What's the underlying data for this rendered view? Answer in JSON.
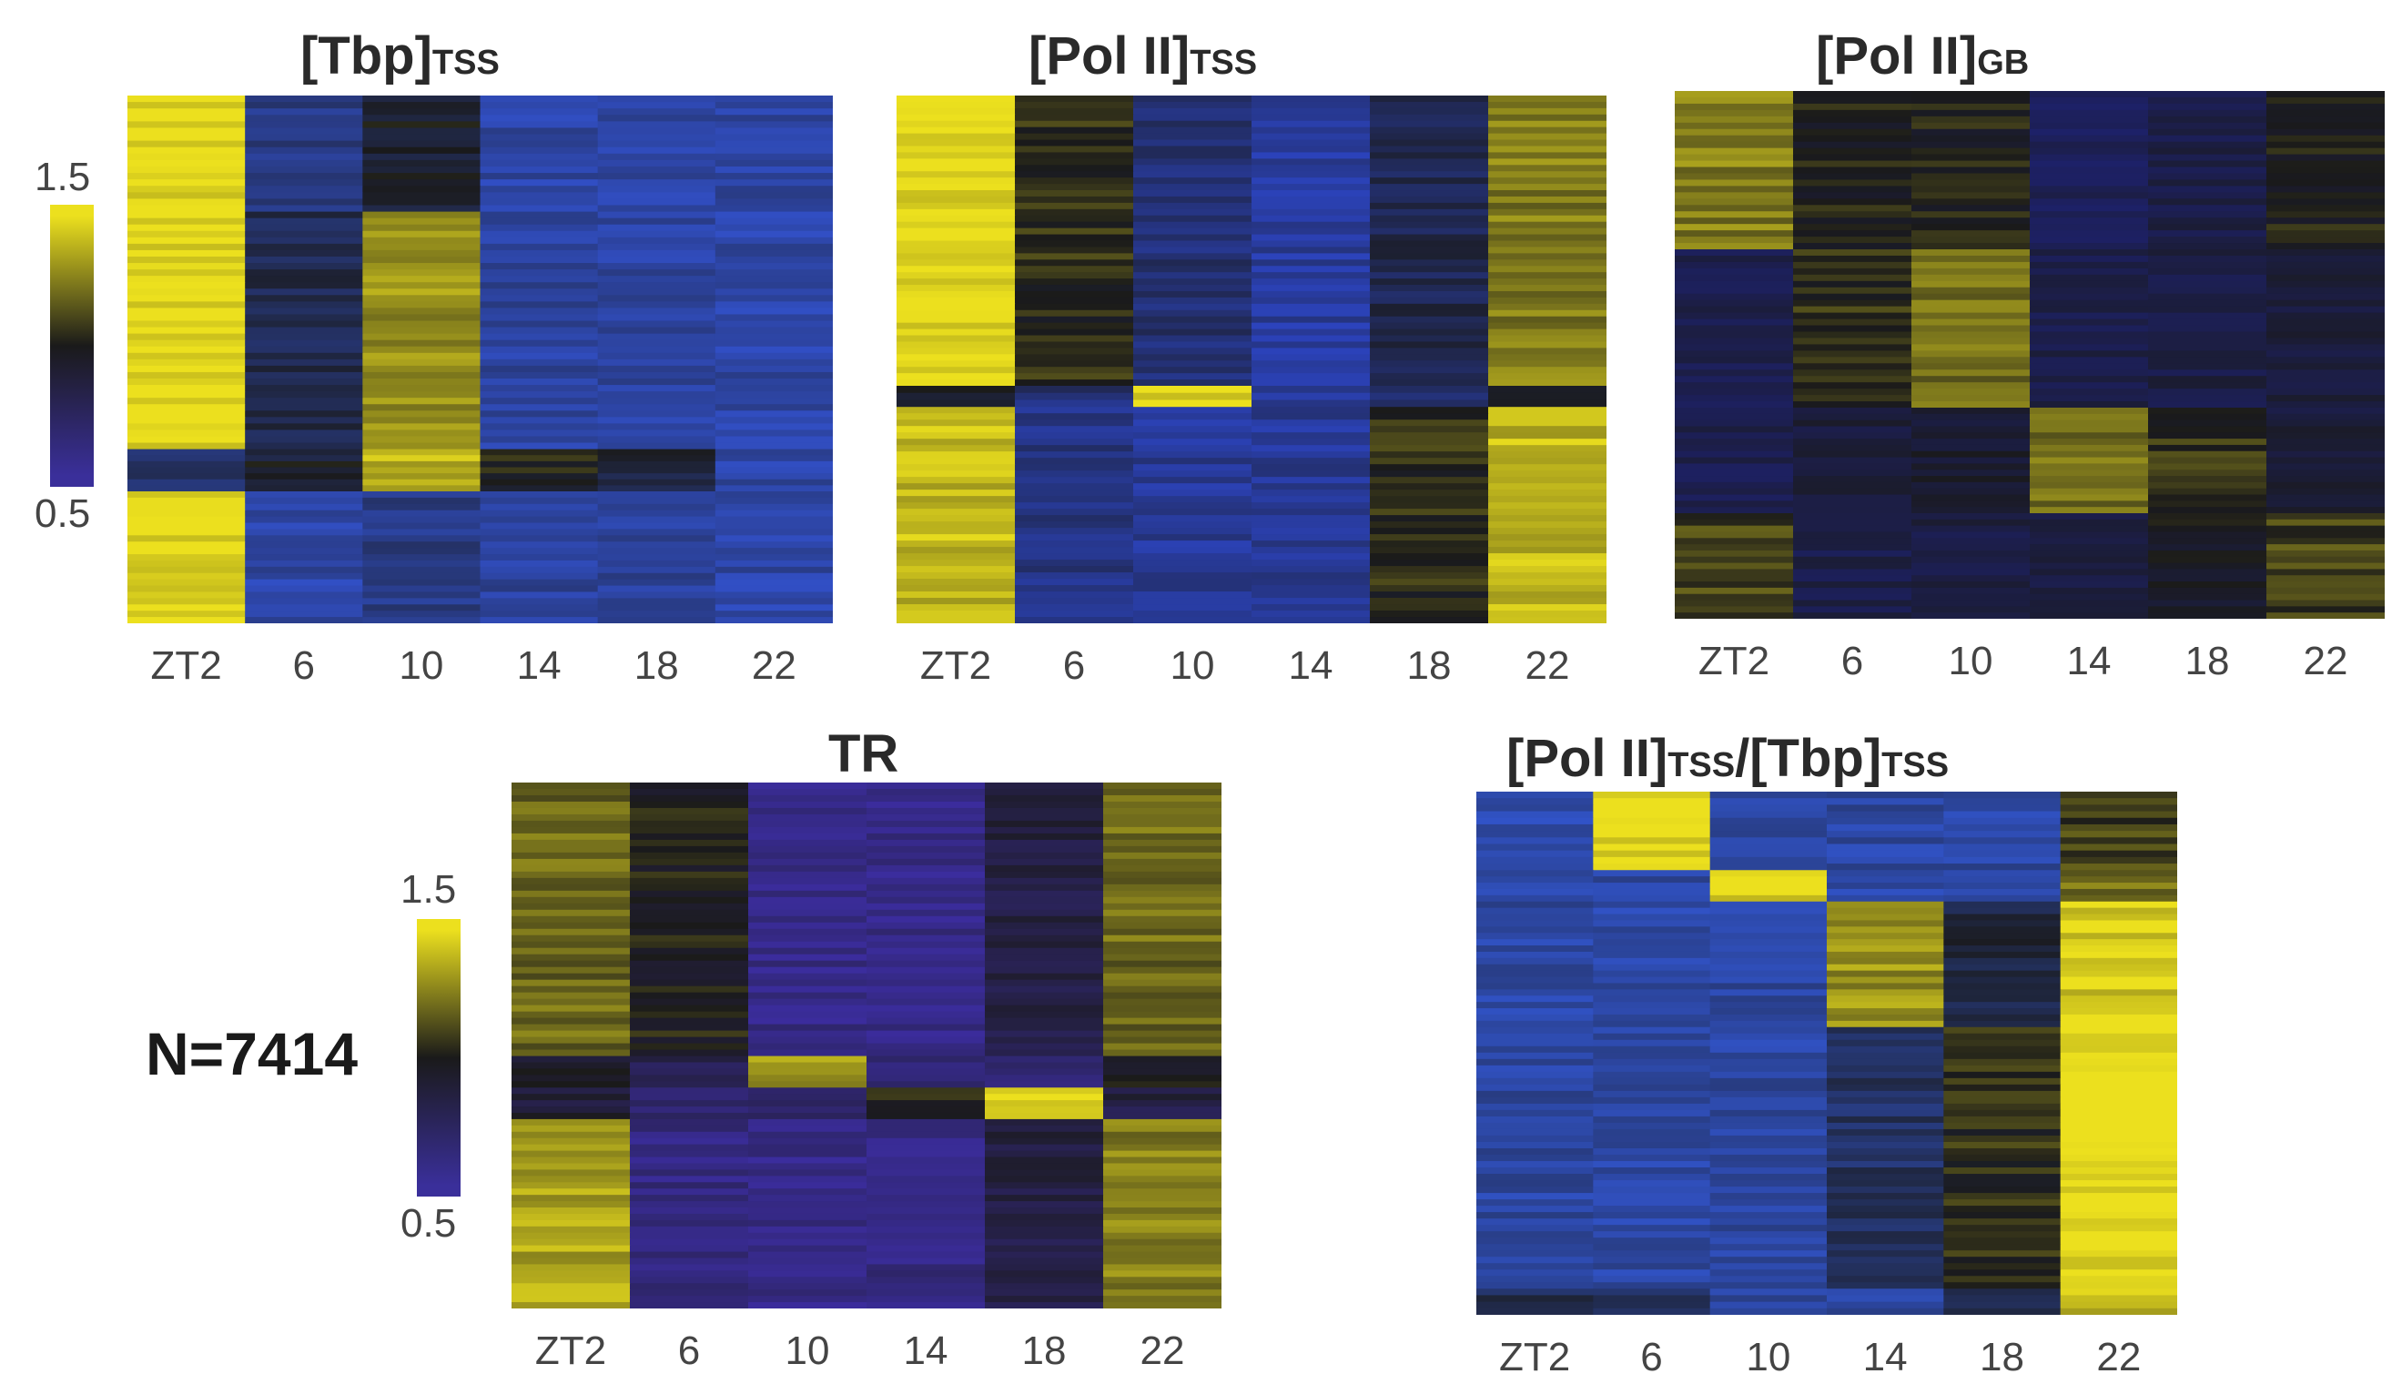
{
  "figure": {
    "n_label": "N=7414",
    "colorbar": {
      "max_label": "1.5",
      "min_label": "0.5",
      "colors": [
        "#ece01e",
        "#1a1a1a",
        "#3a2f9a"
      ]
    }
  },
  "chart_data": [
    {
      "type": "heatmap",
      "title": "[Tbp]",
      "title_sub": "TSS",
      "categories": [
        "ZT2",
        "6",
        "10",
        "14",
        "18",
        "22"
      ],
      "value_range": [
        0.5,
        1.5
      ],
      "bands": [
        {
          "fraction": 0.22,
          "values": [
            1.5,
            0.7,
            0.95,
            0.6,
            0.6,
            0.6
          ]
        },
        {
          "fraction": 0.45,
          "values": [
            1.5,
            0.85,
            1.3,
            0.62,
            0.62,
            0.6
          ]
        },
        {
          "fraction": 0.08,
          "values": [
            0.8,
            0.95,
            1.4,
            1.0,
            0.9,
            0.6
          ]
        },
        {
          "fraction": 0.25,
          "values": [
            1.5,
            0.6,
            0.7,
            0.62,
            0.65,
            0.6
          ]
        }
      ]
    },
    {
      "type": "heatmap",
      "title": "[Pol II]",
      "title_sub": "TSS",
      "categories": [
        "ZT2",
        "6",
        "10",
        "14",
        "18",
        "22"
      ],
      "value_range": [
        0.5,
        1.5
      ],
      "bands": [
        {
          "fraction": 0.55,
          "values": [
            1.5,
            1.05,
            0.75,
            0.62,
            0.85,
            1.25
          ]
        },
        {
          "fraction": 0.04,
          "values": [
            0.95,
            0.75,
            1.45,
            0.65,
            0.75,
            1.0
          ]
        },
        {
          "fraction": 0.41,
          "values": [
            1.4,
            0.7,
            0.65,
            0.65,
            1.05,
            1.4
          ]
        }
      ]
    },
    {
      "type": "heatmap",
      "title": "[Pol II]",
      "title_sub": "GB",
      "categories": [
        "ZT2",
        "6",
        "10",
        "14",
        "18",
        "22"
      ],
      "value_range": [
        0.5,
        1.5
      ],
      "bands": [
        {
          "fraction": 0.3,
          "values": [
            1.25,
            1.0,
            1.0,
            0.7,
            0.78,
            1.0
          ]
        },
        {
          "fraction": 0.3,
          "values": [
            0.75,
            1.05,
            1.2,
            0.78,
            0.8,
            0.85
          ]
        },
        {
          "fraction": 0.2,
          "values": [
            0.75,
            0.85,
            0.9,
            1.2,
            1.05,
            0.85
          ]
        },
        {
          "fraction": 0.2,
          "values": [
            1.1,
            0.78,
            0.8,
            0.8,
            0.95,
            1.1
          ]
        }
      ]
    },
    {
      "type": "heatmap",
      "title": "TR",
      "title_sub": "",
      "categories": [
        "ZT2",
        "6",
        "10",
        "14",
        "18",
        "22"
      ],
      "value_range": [
        0.5,
        1.5
      ],
      "bands": [
        {
          "fraction": 0.52,
          "values": [
            1.2,
            1.0,
            0.6,
            0.6,
            0.85,
            1.2
          ]
        },
        {
          "fraction": 0.06,
          "values": [
            0.95,
            0.8,
            1.3,
            0.65,
            0.7,
            0.95
          ]
        },
        {
          "fraction": 0.06,
          "values": [
            0.9,
            0.7,
            0.7,
            1.0,
            1.45,
            0.85
          ]
        },
        {
          "fraction": 0.36,
          "values": [
            1.35,
            0.62,
            0.6,
            0.62,
            0.85,
            1.25
          ]
        }
      ]
    },
    {
      "type": "heatmap",
      "title": "[Pol II]",
      "title_sub": "TSS",
      "title2": "/[Tbp]",
      "title2_sub": "TSS",
      "categories": [
        "ZT2",
        "6",
        "10",
        "14",
        "18",
        "22"
      ],
      "value_range": [
        0.5,
        1.5
      ],
      "bands": [
        {
          "fraction": 0.15,
          "values": [
            0.6,
            1.5,
            0.62,
            0.62,
            0.62,
            1.1
          ]
        },
        {
          "fraction": 0.06,
          "values": [
            0.6,
            0.62,
            1.45,
            0.62,
            0.62,
            1.2
          ]
        },
        {
          "fraction": 0.24,
          "values": [
            0.62,
            0.6,
            0.62,
            1.3,
            0.9,
            1.45
          ]
        },
        {
          "fraction": 0.5,
          "values": [
            0.62,
            0.62,
            0.62,
            0.8,
            1.05,
            1.5
          ]
        },
        {
          "fraction": 0.05,
          "values": [
            0.85,
            0.8,
            0.62,
            0.62,
            0.9,
            1.4
          ]
        }
      ]
    }
  ]
}
